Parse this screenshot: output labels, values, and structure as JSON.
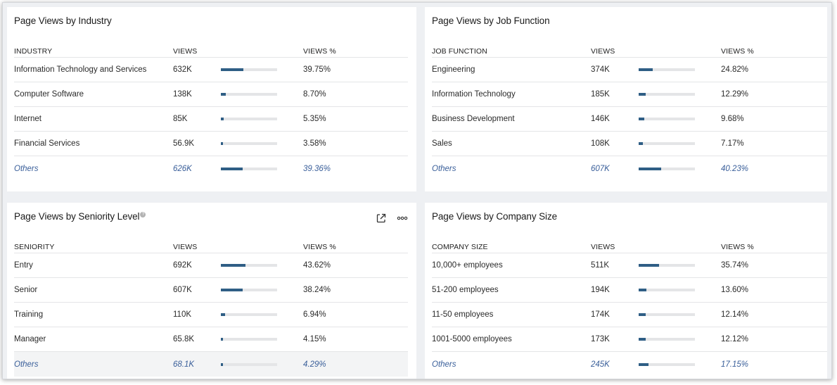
{
  "panels": {
    "industry": {
      "title": "Page Views by Industry",
      "headers": {
        "name": "INDUSTRY",
        "views": "VIEWS",
        "pct": "VIEWS %"
      },
      "rows": [
        {
          "name": "Information Technology and Services",
          "views": "632K",
          "pct": "39.75%",
          "share": 0.3975
        },
        {
          "name": "Computer Software",
          "views": "138K",
          "pct": "8.70%",
          "share": 0.087
        },
        {
          "name": "Internet",
          "views": "85K",
          "pct": "5.35%",
          "share": 0.0535
        },
        {
          "name": "Financial Services",
          "views": "56.9K",
          "pct": "3.58%",
          "share": 0.0358
        },
        {
          "name": "Others",
          "views": "626K",
          "pct": "39.36%",
          "share": 0.3936
        }
      ]
    },
    "job_function": {
      "title": "Page Views by Job Function",
      "headers": {
        "name": "JOB FUNCTION",
        "views": "VIEWS",
        "pct": "VIEWS %"
      },
      "rows": [
        {
          "name": "Engineering",
          "views": "374K",
          "pct": "24.82%",
          "share": 0.2482
        },
        {
          "name": "Information Technology",
          "views": "185K",
          "pct": "12.29%",
          "share": 0.1229
        },
        {
          "name": "Business Development",
          "views": "146K",
          "pct": "9.68%",
          "share": 0.0968
        },
        {
          "name": "Sales",
          "views": "108K",
          "pct": "7.17%",
          "share": 0.0717
        },
        {
          "name": "Others",
          "views": "607K",
          "pct": "40.23%",
          "share": 0.4023
        }
      ]
    },
    "seniority": {
      "title": "Page Views by Seniority Level",
      "help_icon": "?",
      "actions": {
        "open_icon": "external-link-icon",
        "more_icon": "more-options-icon"
      },
      "headers": {
        "name": "SENIORITY",
        "views": "VIEWS",
        "pct": "VIEWS %"
      },
      "rows": [
        {
          "name": "Entry",
          "views": "692K",
          "pct": "43.62%",
          "share": 0.4362
        },
        {
          "name": "Senior",
          "views": "607K",
          "pct": "38.24%",
          "share": 0.3824
        },
        {
          "name": "Training",
          "views": "110K",
          "pct": "6.94%",
          "share": 0.0694
        },
        {
          "name": "Manager",
          "views": "65.8K",
          "pct": "4.15%",
          "share": 0.0415
        },
        {
          "name": "Others",
          "views": "68.1K",
          "pct": "4.29%",
          "share": 0.0429
        }
      ]
    },
    "company_size": {
      "title": "Page Views by Company Size",
      "headers": {
        "name": "COMPANY SIZE",
        "views": "VIEWS",
        "pct": "VIEWS %"
      },
      "rows": [
        {
          "name": "10,000+ employees",
          "views": "511K",
          "pct": "35.74%",
          "share": 0.3574
        },
        {
          "name": "51-200 employees",
          "views": "194K",
          "pct": "13.60%",
          "share": 0.136
        },
        {
          "name": "11-50 employees",
          "views": "174K",
          "pct": "12.14%",
          "share": 0.1214
        },
        {
          "name": "1001-5000 employees",
          "views": "173K",
          "pct": "12.12%",
          "share": 0.1212
        },
        {
          "name": "Others",
          "views": "245K",
          "pct": "17.15%",
          "share": 0.1715
        }
      ]
    }
  },
  "colors": {
    "bar_fill": "#2f5e85",
    "bar_track": "#e4e5e7",
    "others_text": "#3a5f9a"
  }
}
